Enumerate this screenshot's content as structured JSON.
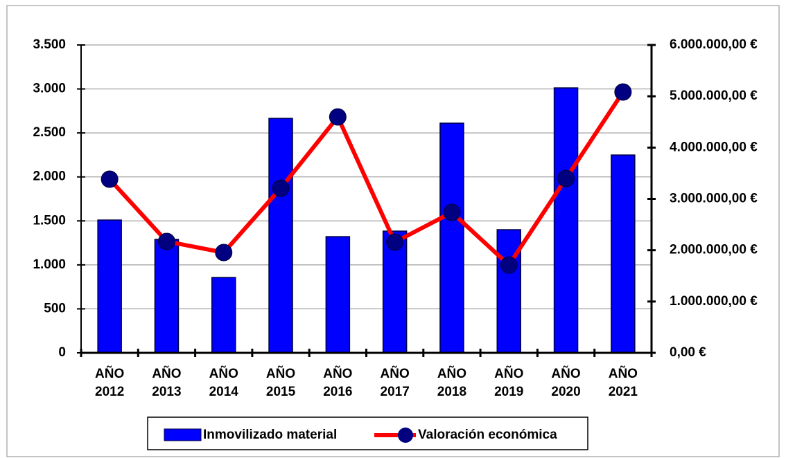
{
  "chart_data": {
    "type": "bar",
    "categories": [
      "AÑO 2012",
      "AÑO 2013",
      "AÑO 2014",
      "AÑO 2015",
      "AÑO 2016",
      "AÑO 2017",
      "AÑO 2018",
      "AÑO 2019",
      "AÑO 2020",
      "AÑO 2021"
    ],
    "series": [
      {
        "name": "Inmovilizado material",
        "type": "bar",
        "axis": "y",
        "color": "#0000ff",
        "values": [
          1510,
          1290,
          857,
          2666,
          1321,
          1384,
          2611,
          1400,
          3012,
          2249
        ]
      },
      {
        "name": "Valoración económica",
        "type": "line",
        "axis": "y2",
        "color": "#ff0000",
        "marker_color": "#000080",
        "values": [
          3384000,
          2171000,
          1955000,
          3209000,
          4598000,
          2157000,
          2737000,
          1712000,
          3398000,
          5083000
        ]
      }
    ],
    "ylim": [
      0,
      3500
    ],
    "yticks": [
      0,
      500,
      {
        "value": 1000,
        "label": "1.000"
      },
      {
        "value": 1500,
        "label": "1.500"
      },
      {
        "value": 2000,
        "label": "2.000"
      },
      {
        "value": 2500,
        "label": "2.500"
      },
      {
        "value": 3000,
        "label": "3.000"
      },
      {
        "value": 3500,
        "label": "3.500"
      }
    ],
    "y2lim": [
      0,
      6000000
    ],
    "y2ticks": [
      {
        "value": 0,
        "label": "0,00 €"
      },
      {
        "value": 1000000,
        "label": "1.000.000,00 €"
      },
      {
        "value": 2000000,
        "label": "2.000.000,00 €"
      },
      {
        "value": 3000000,
        "label": "3.000.000,00 €"
      },
      {
        "value": 4000000,
        "label": "4.000.000,00 €"
      },
      {
        "value": 5000000,
        "label": "5.000.000,00 €"
      },
      {
        "value": 6000000,
        "label": "6.000.000,00 €"
      }
    ],
    "grid": true,
    "legend": "bottom"
  }
}
